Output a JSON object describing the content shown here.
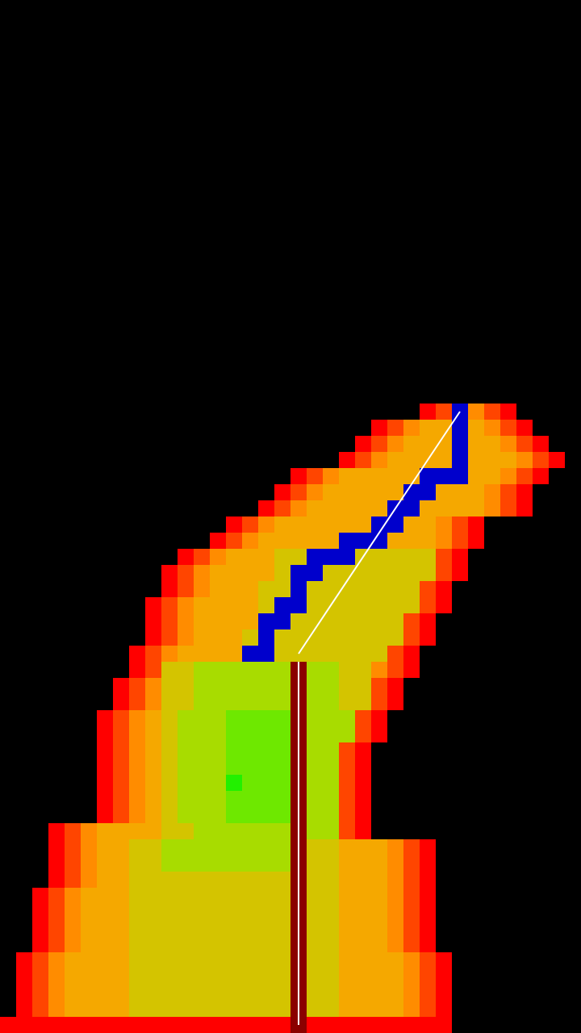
{
  "game": {
    "background_color": "#000000",
    "cell_colors": {
      "edge": "#ff0000",
      "outer": "#ff4500",
      "warm": "#ff8c00",
      "mid": "#f5a800",
      "yellow": "#d4c400",
      "lime": "#a8dc00",
      "green": "#6ee800",
      "hot": "#22f000",
      "path": "#0000cc",
      "stem": "#8b0000",
      "trace": "#ffffff"
    },
    "icons": [
      "heat-map-blob",
      "blue-path-icon",
      "white-trace-line",
      "stem-pole-icon"
    ]
  }
}
